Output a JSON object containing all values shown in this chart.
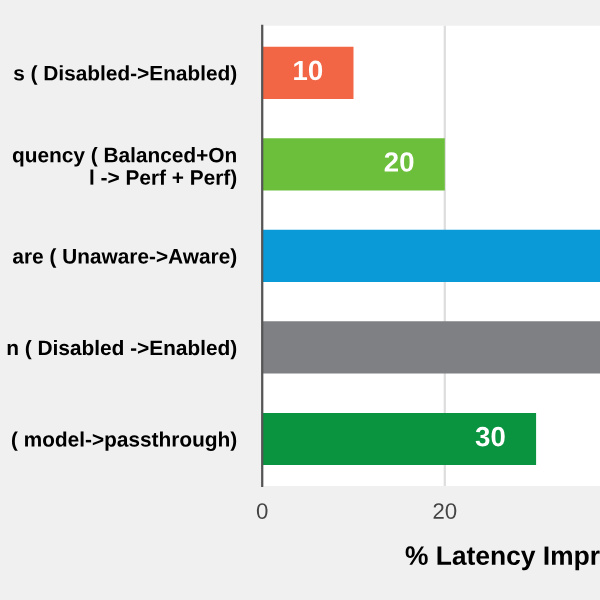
{
  "chart_data": {
    "type": "bar",
    "orientation": "horizontal",
    "categories": [
      "s ( Disabled->Enabled)",
      "quency ( Balanced+On\nl -> Perf + Perf)",
      "are ( Unaware->Aware)",
      "n ( Disabled ->Enabled)",
      "( model->passthrough)"
    ],
    "values": [
      10,
      20,
      37,
      37,
      30
    ],
    "colors": [
      "#f26545",
      "#6cbf3a",
      "#0b9ad8",
      "#7f8083",
      "#0a9440"
    ],
    "value_labels": [
      "10",
      "20",
      null,
      null,
      "30"
    ],
    "xlabel": "% Latency Impr",
    "xlim": [
      0,
      37
    ],
    "xticks": [
      0,
      20
    ],
    "grid": "x"
  }
}
